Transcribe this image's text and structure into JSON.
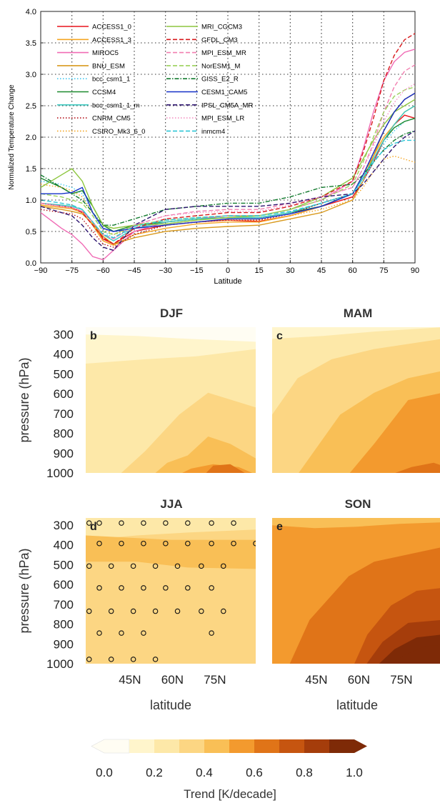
{
  "chart_data": [
    {
      "type": "line",
      "xlabel": "Latitude",
      "ylabel": "Normalized Temperature Change",
      "xlim": [
        -90,
        90
      ],
      "ylim": [
        0.0,
        4.0
      ],
      "x_ticks": [
        "−90",
        "−75",
        "−60",
        "−45",
        "−30",
        "−15",
        "0",
        "15",
        "30",
        "45",
        "60",
        "75",
        "90"
      ],
      "x_tick_values": [
        -90,
        -75,
        -60,
        -45,
        -30,
        -15,
        0,
        15,
        30,
        45,
        60,
        75,
        90
      ],
      "y_ticks": [
        "0.0",
        "0.5",
        "1.0",
        "1.5",
        "2.0",
        "2.5",
        "3.0",
        "3.5",
        "4.0"
      ],
      "y_tick_values": [
        0,
        0.5,
        1,
        1.5,
        2,
        2.5,
        3,
        3.5,
        4
      ],
      "grid": "dotted",
      "legend_placement": "top-left",
      "x": [
        -90,
        -80,
        -75,
        -70,
        -65,
        -60,
        -55,
        -45,
        -30,
        -15,
        0,
        15,
        30,
        45,
        60,
        65,
        70,
        75,
        80,
        85,
        90
      ],
      "series": [
        {
          "name": "ACCESS1_0",
          "color": "#e8141c",
          "dash": "solid",
          "values": [
            0.95,
            0.9,
            0.88,
            0.82,
            0.65,
            0.38,
            0.3,
            0.5,
            0.6,
            0.65,
            0.68,
            0.66,
            0.75,
            0.9,
            1.05,
            1.3,
            1.6,
            1.95,
            2.2,
            2.35,
            2.3
          ]
        },
        {
          "name": "ACCESS1_3",
          "color": "#f5a623",
          "dash": "solid",
          "values": [
            0.92,
            0.88,
            0.86,
            0.8,
            0.6,
            0.35,
            0.28,
            0.45,
            0.55,
            0.62,
            0.65,
            0.65,
            0.75,
            0.9,
            1.1,
            1.4,
            1.7,
            2.0,
            2.2,
            2.4,
            2.5
          ]
        },
        {
          "name": "MIROC5",
          "color": "#f06bb5",
          "dash": "solid",
          "values": [
            0.8,
            0.55,
            0.45,
            0.3,
            0.1,
            0.05,
            0.2,
            0.5,
            0.65,
            0.7,
            0.75,
            0.75,
            0.85,
            1.0,
            1.3,
            1.8,
            2.4,
            2.9,
            3.2,
            3.35,
            3.4
          ]
        },
        {
          "name": "BNU_ESM",
          "color": "#d99a1e",
          "dash": "solid",
          "values": [
            0.9,
            0.85,
            0.82,
            0.78,
            0.62,
            0.42,
            0.3,
            0.4,
            0.5,
            0.55,
            0.58,
            0.6,
            0.7,
            0.8,
            1.0,
            1.3,
            1.7,
            2.1,
            2.4,
            2.6,
            2.7
          ]
        },
        {
          "name": "bcc_csm1_1",
          "color": "#43c8f0",
          "dash": "dotted",
          "values": [
            1.3,
            1.25,
            1.2,
            1.1,
            0.8,
            0.5,
            0.4,
            0.55,
            0.65,
            0.7,
            0.72,
            0.72,
            0.8,
            0.95,
            1.1,
            1.3,
            1.6,
            1.9,
            2.1,
            2.25,
            2.3
          ]
        },
        {
          "name": "CCSM4",
          "color": "#1a8a2e",
          "dash": "solid",
          "values": [
            1.35,
            1.2,
            1.1,
            1.15,
            0.9,
            0.6,
            0.5,
            0.6,
            0.65,
            0.7,
            0.72,
            0.72,
            0.8,
            0.9,
            1.1,
            1.35,
            1.65,
            1.95,
            2.15,
            2.25,
            2.3
          ]
        },
        {
          "name": "bcc_csm1_1_m",
          "color": "#3cc9c0",
          "dash": "solid",
          "values": [
            0.95,
            0.92,
            0.9,
            0.85,
            0.65,
            0.45,
            0.35,
            0.55,
            0.65,
            0.7,
            0.72,
            0.72,
            0.8,
            0.95,
            1.1,
            1.35,
            1.65,
            1.95,
            2.2,
            2.4,
            2.5
          ]
        },
        {
          "name": "CNRM_CM5",
          "color": "#b5121b",
          "dash": "dotted",
          "values": [
            0.85,
            0.8,
            0.78,
            0.7,
            0.5,
            0.3,
            0.25,
            0.45,
            0.6,
            0.65,
            0.68,
            0.68,
            0.78,
            0.95,
            1.1,
            1.4,
            1.75,
            2.1,
            2.4,
            2.6,
            2.7
          ]
        },
        {
          "name": "CSIRO_Mk3_6_0",
          "color": "#f5a623",
          "dash": "dotted",
          "values": [
            1.25,
            1.2,
            1.15,
            1.05,
            0.8,
            0.55,
            0.45,
            0.55,
            0.6,
            0.65,
            0.68,
            0.68,
            0.75,
            0.85,
            1.0,
            1.2,
            1.45,
            1.65,
            1.7,
            1.65,
            1.6
          ]
        },
        {
          "name": "MRI_CGCM3",
          "color": "#8dc63f",
          "dash": "solid",
          "values": [
            1.2,
            1.4,
            1.5,
            1.3,
            0.9,
            0.6,
            0.55,
            0.6,
            0.62,
            0.68,
            0.72,
            0.75,
            0.85,
            1.05,
            1.35,
            1.65,
            1.95,
            2.2,
            2.4,
            2.5,
            2.6
          ]
        },
        {
          "name": "GFDL_CM3",
          "color": "#d7191c",
          "dash": "dashed",
          "values": [
            0.95,
            0.9,
            0.88,
            0.8,
            0.6,
            0.4,
            0.3,
            0.55,
            0.7,
            0.75,
            0.8,
            0.8,
            0.9,
            1.05,
            1.3,
            1.75,
            2.3,
            2.9,
            3.3,
            3.55,
            3.65
          ]
        },
        {
          "name": "MPI_ESM_MR",
          "color": "#f27fb0",
          "dash": "dashed",
          "values": [
            0.95,
            0.9,
            0.88,
            0.82,
            0.65,
            0.45,
            0.38,
            0.6,
            0.75,
            0.82,
            0.85,
            0.85,
            0.95,
            1.05,
            1.2,
            1.5,
            1.9,
            2.4,
            2.8,
            3.05,
            3.15
          ]
        },
        {
          "name": "NorESM1_M",
          "color": "#9ad15a",
          "dash": "dashed",
          "values": [
            1.1,
            1.05,
            1.0,
            0.95,
            0.75,
            0.5,
            0.45,
            0.6,
            0.68,
            0.72,
            0.75,
            0.75,
            0.85,
            1.0,
            1.25,
            1.6,
            2.0,
            2.4,
            2.65,
            2.75,
            2.8
          ]
        },
        {
          "name": "GISS_E2_R",
          "color": "#117a2d",
          "dash": "dashdot",
          "values": [
            1.4,
            1.2,
            1.1,
            1.0,
            0.8,
            0.6,
            0.6,
            0.7,
            0.85,
            0.9,
            0.95,
            0.95,
            1.05,
            1.2,
            1.25,
            1.4,
            1.6,
            1.8,
            1.95,
            2.05,
            2.1
          ]
        },
        {
          "name": "CESM1_CAM5",
          "color": "#1430c8",
          "dash": "solid",
          "values": [
            1.1,
            1.1,
            1.12,
            1.2,
            0.8,
            0.55,
            0.5,
            0.55,
            0.6,
            0.65,
            0.7,
            0.7,
            0.78,
            0.9,
            1.1,
            1.4,
            1.75,
            2.1,
            2.4,
            2.6,
            2.7
          ]
        },
        {
          "name": "IPSL_CM5A_MR",
          "color": "#2e1570",
          "dash": "dashed",
          "values": [
            0.9,
            0.8,
            0.75,
            0.6,
            0.4,
            0.25,
            0.2,
            0.6,
            0.85,
            0.9,
            0.9,
            0.9,
            0.95,
            1.05,
            1.1,
            1.25,
            1.45,
            1.65,
            1.85,
            2.0,
            2.1
          ]
        },
        {
          "name": "MPI_ESM_LR",
          "color": "#f591c2",
          "dash": "dotted",
          "values": [
            0.95,
            0.9,
            0.88,
            0.82,
            0.65,
            0.45,
            0.38,
            0.6,
            0.75,
            0.8,
            0.82,
            0.82,
            0.92,
            1.05,
            1.2,
            1.5,
            1.85,
            2.25,
            2.55,
            2.75,
            2.85
          ]
        },
        {
          "name": "inmcm4",
          "color": "#2ec6d6",
          "dash": "dashed",
          "values": [
            1.0,
            0.95,
            0.92,
            0.85,
            0.65,
            0.45,
            0.4,
            0.58,
            0.68,
            0.72,
            0.75,
            0.75,
            0.82,
            0.95,
            1.1,
            1.35,
            1.6,
            1.8,
            1.9,
            1.95,
            1.95
          ]
        }
      ]
    },
    {
      "type": "heatmap",
      "xlabel": "latitude",
      "ylabel": "pressure (hPa)",
      "x_ticks": [
        "45N",
        "60N",
        "75N"
      ],
      "y_ticks": [
        "300",
        "400",
        "500",
        "600",
        "700",
        "800",
        "900",
        "1000"
      ],
      "y_tick_values": [
        300,
        400,
        500,
        600,
        700,
        800,
        900,
        1000
      ],
      "panels": [
        {
          "season": "DJF",
          "letter": "b",
          "trend_levels": [
            0.0,
            0.1,
            0.2,
            0.3,
            0.4,
            0.5,
            0.6
          ],
          "stippled": false
        },
        {
          "season": "MAM",
          "letter": "c",
          "trend_levels": [
            0.1,
            0.2,
            0.3,
            0.4,
            0.5,
            0.6
          ],
          "stippled": false
        },
        {
          "season": "JJA",
          "letter": "d",
          "trend_levels": [
            0.2,
            0.3,
            0.4
          ],
          "stippled": true
        },
        {
          "season": "SON",
          "letter": "e",
          "trend_levels": [
            0.3,
            0.4,
            0.5,
            0.6,
            0.7,
            0.8,
            0.9,
            1.0
          ],
          "stippled": false
        }
      ],
      "colorbar": {
        "label": "Trend [K/decade]",
        "tick_labels": [
          "0.0",
          "0.2",
          "0.4",
          "0.6",
          "0.8",
          "1.0"
        ],
        "bounds": [
          0.0,
          0.1,
          0.2,
          0.3,
          0.4,
          0.5,
          0.6,
          0.7,
          0.8,
          0.9,
          1.0
        ],
        "colors": [
          "#fffdf3",
          "#fff5cc",
          "#fde8a8",
          "#fcd683",
          "#f9bf56",
          "#f39a2e",
          "#e07418",
          "#c65510",
          "#a53d0b",
          "#7e2a07"
        ],
        "extend": "both"
      }
    }
  ]
}
